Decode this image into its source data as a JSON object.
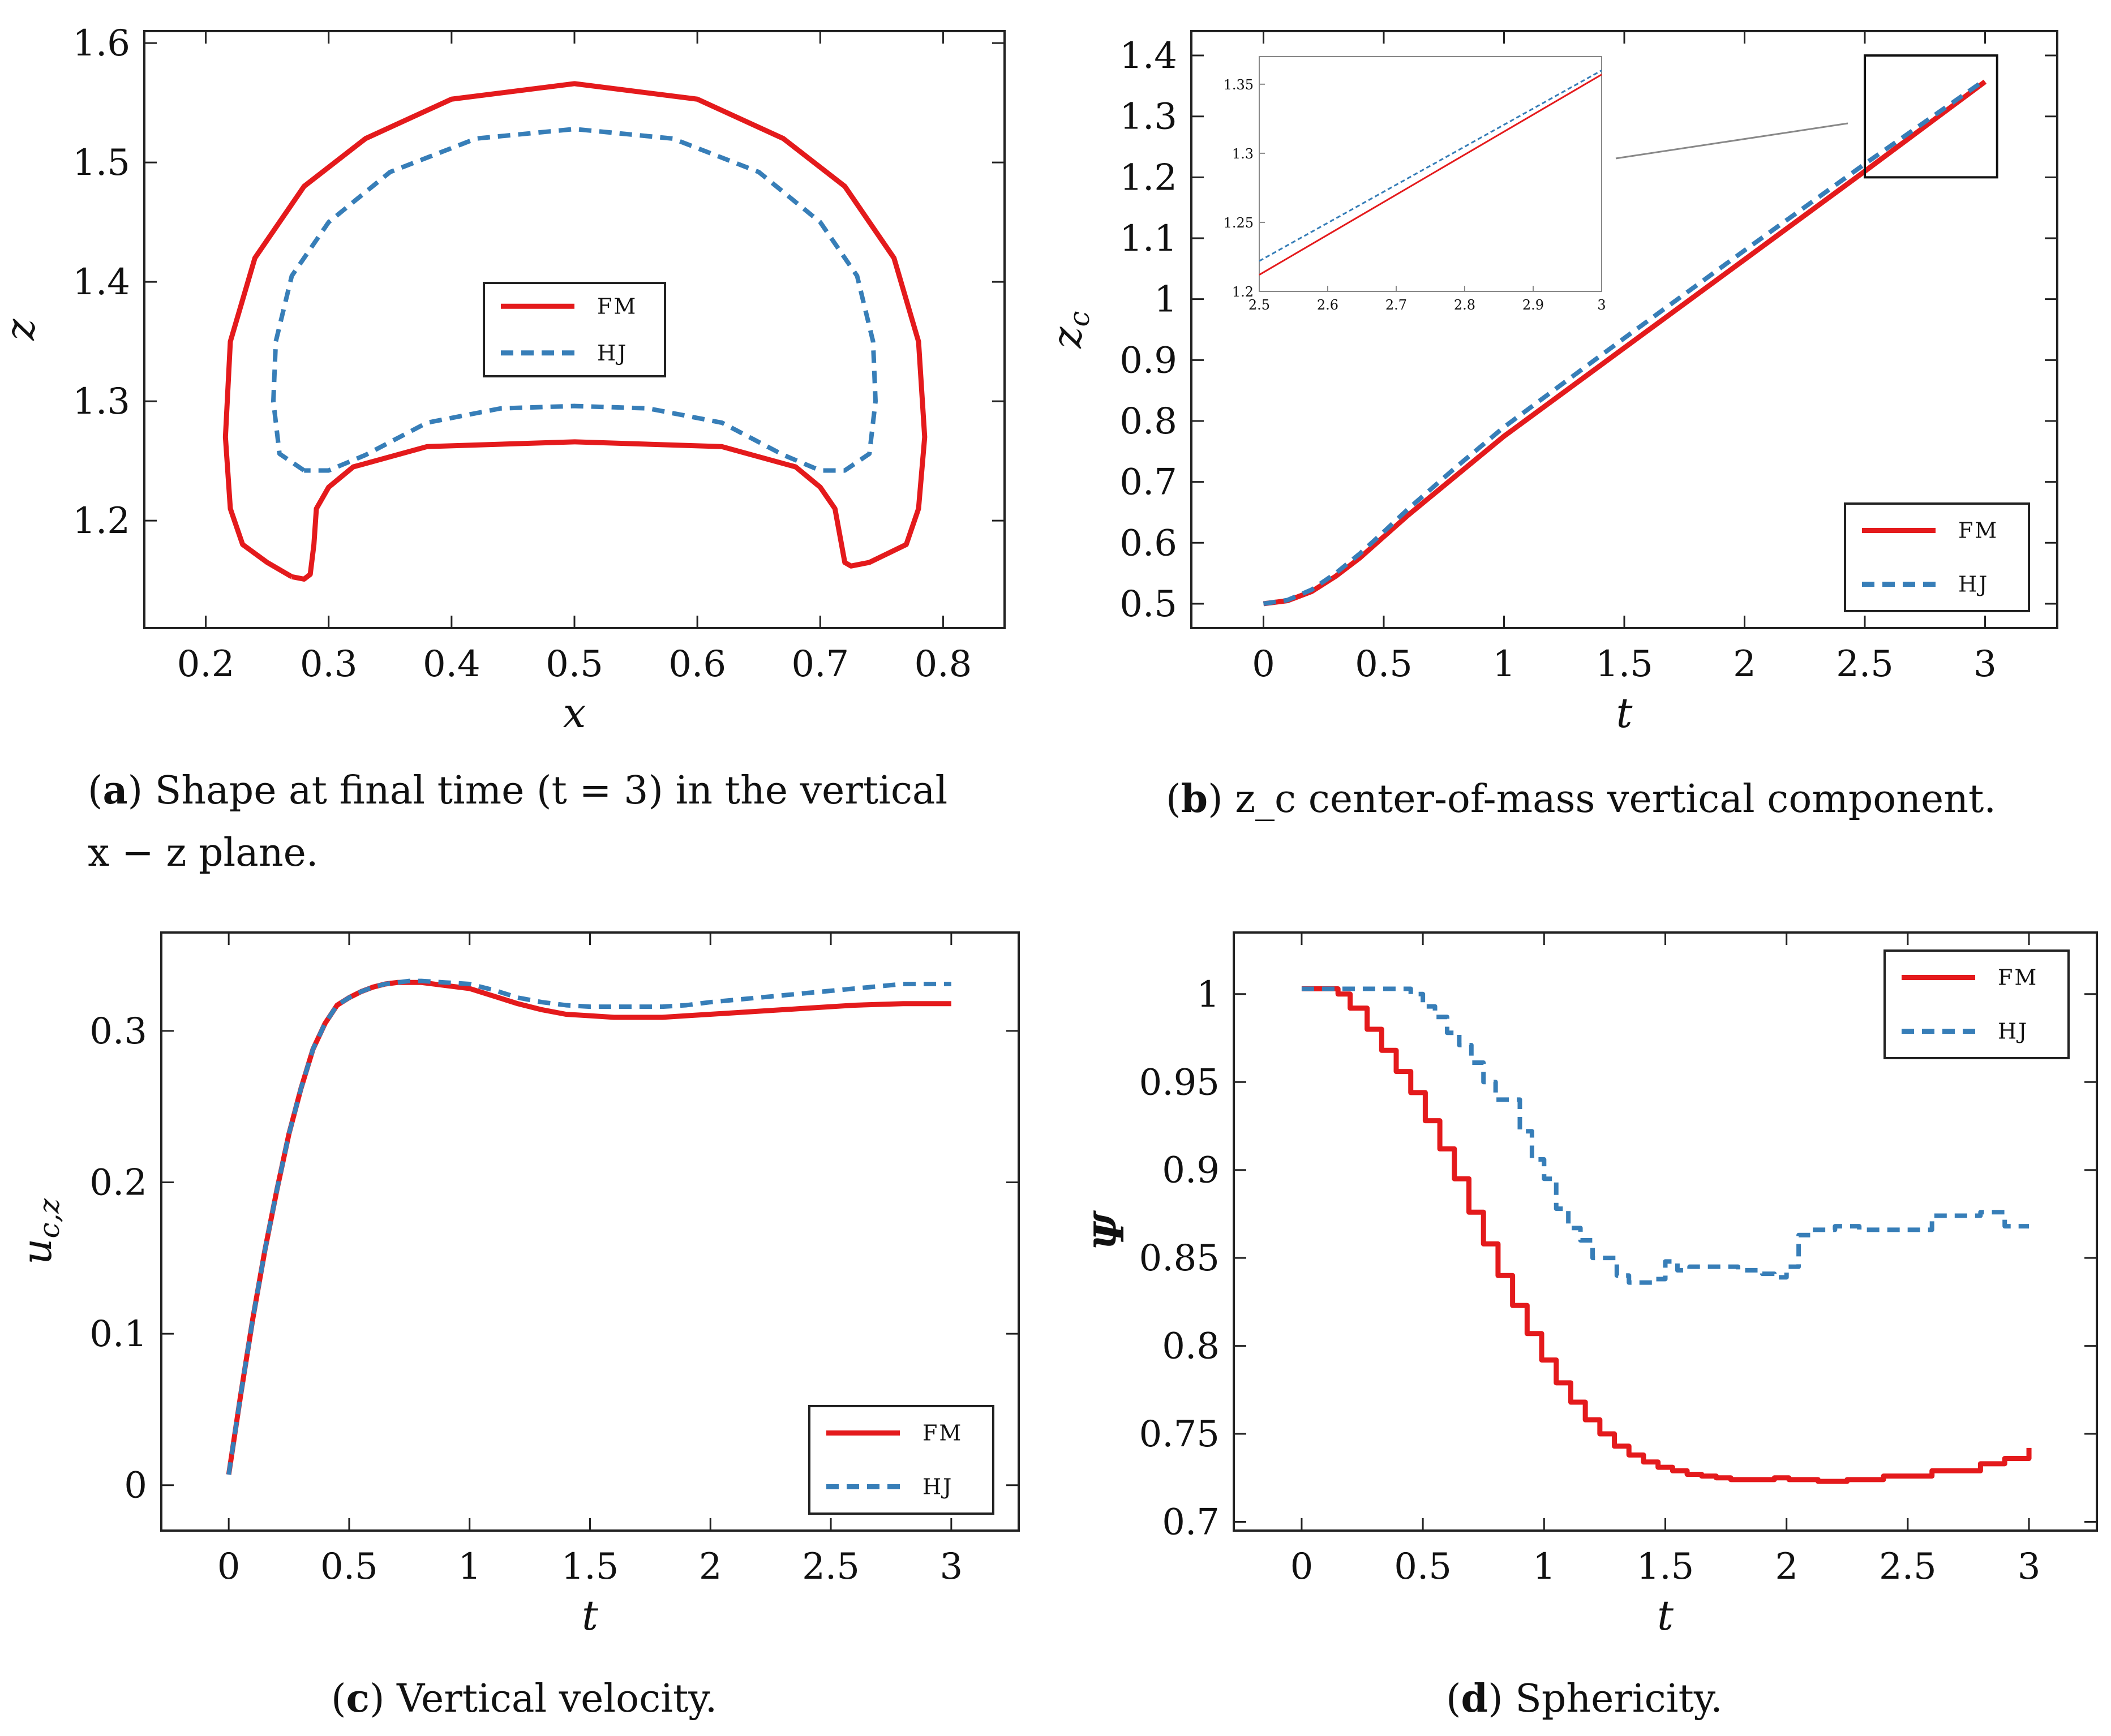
{
  "colors": {
    "fm": "#e41a1c",
    "hj": "#377eb8",
    "axis": "#222222"
  },
  "chart_data": [
    {
      "id": "a",
      "type": "line",
      "xlabel": "x",
      "ylabel": "z",
      "xlim": [
        0.15,
        0.85
      ],
      "ylim": [
        1.11,
        1.61
      ],
      "xticks": [
        0.2,
        0.3,
        0.4,
        0.5,
        0.6,
        0.7,
        0.8
      ],
      "yticks": [
        1.2,
        1.3,
        1.4,
        1.5,
        1.6
      ],
      "xtick_labels": [
        "0.2",
        "0.3",
        "0.4",
        "0.5",
        "0.6",
        "0.7",
        "0.8"
      ],
      "ytick_labels": [
        "1.2",
        "1.3",
        "1.4",
        "1.5",
        "1.6"
      ],
      "legend": [
        "FM",
        "HJ"
      ],
      "legend_position": "center",
      "series": [
        {
          "name": "FM",
          "style": "solid",
          "x": [
            0.27,
            0.25,
            0.23,
            0.22,
            0.216,
            0.22,
            0.24,
            0.28,
            0.33,
            0.4,
            0.5,
            0.6,
            0.67,
            0.72,
            0.76,
            0.78,
            0.785,
            0.78,
            0.77,
            0.74,
            0.725,
            0.72,
            0.712,
            0.7,
            0.68,
            0.62,
            0.5,
            0.38,
            0.32,
            0.3,
            0.29,
            0.288,
            0.285,
            0.28,
            0.27
          ],
          "y": [
            1.153,
            1.165,
            1.18,
            1.21,
            1.27,
            1.35,
            1.42,
            1.48,
            1.52,
            1.553,
            1.566,
            1.553,
            1.52,
            1.48,
            1.42,
            1.35,
            1.27,
            1.21,
            1.18,
            1.165,
            1.162,
            1.165,
            1.21,
            1.228,
            1.245,
            1.262,
            1.266,
            1.262,
            1.245,
            1.228,
            1.21,
            1.18,
            1.155,
            1.151,
            1.153
          ]
        },
        {
          "name": "HJ",
          "style": "dashed",
          "x": [
            0.28,
            0.26,
            0.255,
            0.257,
            0.27,
            0.3,
            0.35,
            0.42,
            0.5,
            0.58,
            0.65,
            0.7,
            0.73,
            0.743,
            0.745,
            0.74,
            0.72,
            0.7,
            0.67,
            0.62,
            0.56,
            0.5,
            0.44,
            0.38,
            0.33,
            0.3,
            0.28
          ],
          "y": [
            1.242,
            1.256,
            1.3,
            1.35,
            1.405,
            1.45,
            1.492,
            1.52,
            1.528,
            1.52,
            1.492,
            1.45,
            1.405,
            1.35,
            1.3,
            1.256,
            1.242,
            1.242,
            1.255,
            1.282,
            1.294,
            1.296,
            1.294,
            1.282,
            1.255,
            1.242,
            1.242
          ]
        }
      ],
      "caption_label": "a",
      "caption_text_line1": "Shape at final time (t = 3) in the vertical",
      "caption_text_line2": "x − z plane."
    },
    {
      "id": "b",
      "type": "line",
      "xlabel": "t",
      "ylabel": "z_c",
      "xlim": [
        -0.3,
        3.3
      ],
      "ylim": [
        0.46,
        1.44
      ],
      "xticks": [
        0,
        0.5,
        1,
        1.5,
        2,
        2.5,
        3
      ],
      "yticks": [
        0.5,
        0.6,
        0.7,
        0.8,
        0.9,
        1,
        1.1,
        1.2,
        1.3,
        1.4
      ],
      "xtick_labels": [
        "0",
        "0.5",
        "1",
        "1.5",
        "2",
        "2.5",
        "3"
      ],
      "ytick_labels": [
        "0.5",
        "0.6",
        "0.7",
        "0.8",
        "0.9",
        "1",
        "1.1",
        "1.2",
        "1.3",
        "1.4"
      ],
      "legend": [
        "FM",
        "HJ"
      ],
      "legend_position": "bottom-right",
      "series": [
        {
          "name": "FM",
          "style": "solid",
          "x": [
            0,
            0.1,
            0.2,
            0.3,
            0.4,
            0.5,
            0.6,
            0.8,
            1,
            1.5,
            2,
            2.5,
            3
          ],
          "y": [
            0.5,
            0.505,
            0.52,
            0.545,
            0.575,
            0.61,
            0.645,
            0.71,
            0.775,
            0.92,
            1.065,
            1.21,
            1.357
          ]
        },
        {
          "name": "HJ",
          "style": "dashed",
          "x": [
            0,
            0.1,
            0.2,
            0.3,
            0.4,
            0.5,
            0.6,
            0.8,
            1,
            1.5,
            2,
            2.5,
            3
          ],
          "y": [
            0.5,
            0.506,
            0.523,
            0.55,
            0.582,
            0.618,
            0.655,
            0.724,
            0.79,
            0.936,
            1.08,
            1.222,
            1.36
          ]
        }
      ],
      "inset": {
        "xlim": [
          2.5,
          3
        ],
        "ylim": [
          1.2,
          1.37
        ],
        "xticks": [
          2.5,
          2.6,
          2.7,
          2.8,
          2.9,
          3
        ],
        "yticks": [
          1.2,
          1.25,
          1.3,
          1.35
        ],
        "xtick_labels": [
          "2.5",
          "2.6",
          "2.7",
          "2.8",
          "2.9",
          "3"
        ],
        "ytick_labels": [
          "1.2",
          "1.25",
          "1.3",
          "1.35"
        ],
        "series": [
          {
            "name": "FM",
            "style": "solid",
            "x": [
              2.5,
              3
            ],
            "y": [
              1.212,
              1.357
            ]
          },
          {
            "name": "HJ",
            "style": "dashed",
            "x": [
              2.5,
              3
            ],
            "y": [
              1.222,
              1.36
            ]
          }
        ]
      },
      "caption_label": "b",
      "caption_text": "z_c center-of-mass vertical component."
    },
    {
      "id": "c",
      "type": "line",
      "xlabel": "t",
      "ylabel": "u_c,z",
      "xlim": [
        -0.28,
        3.28
      ],
      "ylim": [
        -0.03,
        0.365
      ],
      "xticks": [
        0,
        0.5,
        1,
        1.5,
        2,
        2.5,
        3
      ],
      "yticks": [
        0,
        0.1,
        0.2,
        0.3
      ],
      "xtick_labels": [
        "0",
        "0.5",
        "1",
        "1.5",
        "2",
        "2.5",
        "3"
      ],
      "ytick_labels": [
        "0",
        "0.1",
        "0.2",
        "0.3"
      ],
      "legend": [
        "FM",
        "HJ"
      ],
      "legend_position": "bottom-right",
      "series": [
        {
          "name": "FM",
          "style": "solid",
          "x": [
            0,
            0.05,
            0.1,
            0.15,
            0.2,
            0.25,
            0.3,
            0.35,
            0.4,
            0.45,
            0.5,
            0.55,
            0.6,
            0.65,
            0.7,
            0.75,
            0.8,
            0.9,
            1,
            1.1,
            1.2,
            1.3,
            1.4,
            1.5,
            1.6,
            1.7,
            1.8,
            1.9,
            2,
            2.2,
            2.4,
            2.6,
            2.8,
            3
          ],
          "y": [
            0.007,
            0.06,
            0.11,
            0.155,
            0.195,
            0.232,
            0.262,
            0.288,
            0.305,
            0.317,
            0.322,
            0.326,
            0.329,
            0.331,
            0.332,
            0.332,
            0.332,
            0.33,
            0.328,
            0.323,
            0.318,
            0.314,
            0.311,
            0.31,
            0.309,
            0.309,
            0.309,
            0.31,
            0.311,
            0.313,
            0.315,
            0.317,
            0.318,
            0.318
          ]
        },
        {
          "name": "HJ",
          "style": "dashed",
          "x": [
            0,
            0.05,
            0.1,
            0.15,
            0.2,
            0.25,
            0.3,
            0.35,
            0.4,
            0.45,
            0.5,
            0.55,
            0.6,
            0.65,
            0.7,
            0.75,
            0.8,
            0.9,
            1,
            1.1,
            1.2,
            1.3,
            1.4,
            1.5,
            1.6,
            1.7,
            1.8,
            1.9,
            2,
            2.2,
            2.4,
            2.6,
            2.8,
            3
          ],
          "y": [
            0.007,
            0.06,
            0.11,
            0.155,
            0.195,
            0.232,
            0.262,
            0.288,
            0.305,
            0.317,
            0.322,
            0.326,
            0.329,
            0.331,
            0.332,
            0.333,
            0.333,
            0.332,
            0.331,
            0.327,
            0.322,
            0.319,
            0.317,
            0.316,
            0.316,
            0.316,
            0.316,
            0.317,
            0.319,
            0.322,
            0.325,
            0.328,
            0.331,
            0.331
          ]
        }
      ],
      "caption_label": "c",
      "caption_text": "Vertical velocity."
    },
    {
      "id": "d",
      "type": "line",
      "xlabel": "t",
      "ylabel": "Ψ",
      "xlim": [
        -0.28,
        3.28
      ],
      "ylim": [
        0.695,
        1.035
      ],
      "xticks": [
        0,
        0.5,
        1,
        1.5,
        2,
        2.5,
        3
      ],
      "yticks": [
        0.7,
        0.75,
        0.8,
        0.85,
        0.9,
        0.95,
        1
      ],
      "xtick_labels": [
        "0",
        "0.5",
        "1",
        "1.5",
        "2",
        "2.5",
        "3"
      ],
      "ytick_labels": [
        "0.7",
        "0.75",
        "0.8",
        "0.85",
        "0.9",
        "0.95",
        "1"
      ],
      "legend": [
        "FM",
        "HJ"
      ],
      "legend_position": "top-right",
      "series": [
        {
          "name": "FM",
          "style": "step",
          "x": [
            0,
            0.15,
            0.2,
            0.27,
            0.33,
            0.39,
            0.45,
            0.51,
            0.57,
            0.63,
            0.69,
            0.75,
            0.81,
            0.87,
            0.93,
            0.99,
            1.05,
            1.11,
            1.17,
            1.23,
            1.29,
            1.35,
            1.41,
            1.47,
            1.53,
            1.59,
            1.65,
            1.71,
            1.77,
            1.83,
            1.89,
            1.95,
            2.01,
            2.07,
            2.13,
            2.19,
            2.25,
            2.4,
            2.6,
            2.8,
            2.9,
            3
          ],
          "y": [
            1.003,
            1.0,
            0.992,
            0.98,
            0.968,
            0.956,
            0.944,
            0.928,
            0.912,
            0.895,
            0.876,
            0.858,
            0.84,
            0.823,
            0.807,
            0.792,
            0.779,
            0.768,
            0.758,
            0.75,
            0.743,
            0.738,
            0.734,
            0.731,
            0.729,
            0.727,
            0.726,
            0.725,
            0.724,
            0.724,
            0.724,
            0.725,
            0.724,
            0.724,
            0.723,
            0.723,
            0.724,
            0.726,
            0.729,
            0.733,
            0.736,
            0.742
          ]
        },
        {
          "name": "HJ",
          "style": "step",
          "x": [
            0,
            0.4,
            0.45,
            0.5,
            0.55,
            0.6,
            0.65,
            0.7,
            0.75,
            0.8,
            0.9,
            0.95,
            1,
            1.05,
            1.1,
            1.15,
            1.2,
            1.3,
            1.35,
            1.45,
            1.5,
            1.55,
            1.6,
            1.7,
            1.8,
            1.9,
            1.95,
            2.0,
            2.05,
            2.1,
            2.2,
            2.3,
            2.4,
            2.5,
            2.6,
            2.7,
            2.8,
            2.9,
            3
          ],
          "y": [
            1.003,
            1.003,
            1.0,
            0.993,
            0.987,
            0.978,
            0.971,
            0.961,
            0.95,
            0.94,
            0.922,
            0.906,
            0.895,
            0.878,
            0.867,
            0.86,
            0.85,
            0.84,
            0.836,
            0.838,
            0.848,
            0.843,
            0.845,
            0.845,
            0.843,
            0.841,
            0.839,
            0.845,
            0.863,
            0.866,
            0.868,
            0.866,
            0.866,
            0.866,
            0.874,
            0.874,
            0.876,
            0.868,
            0.868
          ]
        }
      ],
      "caption_label": "d",
      "caption_text": "Sphericity."
    }
  ]
}
